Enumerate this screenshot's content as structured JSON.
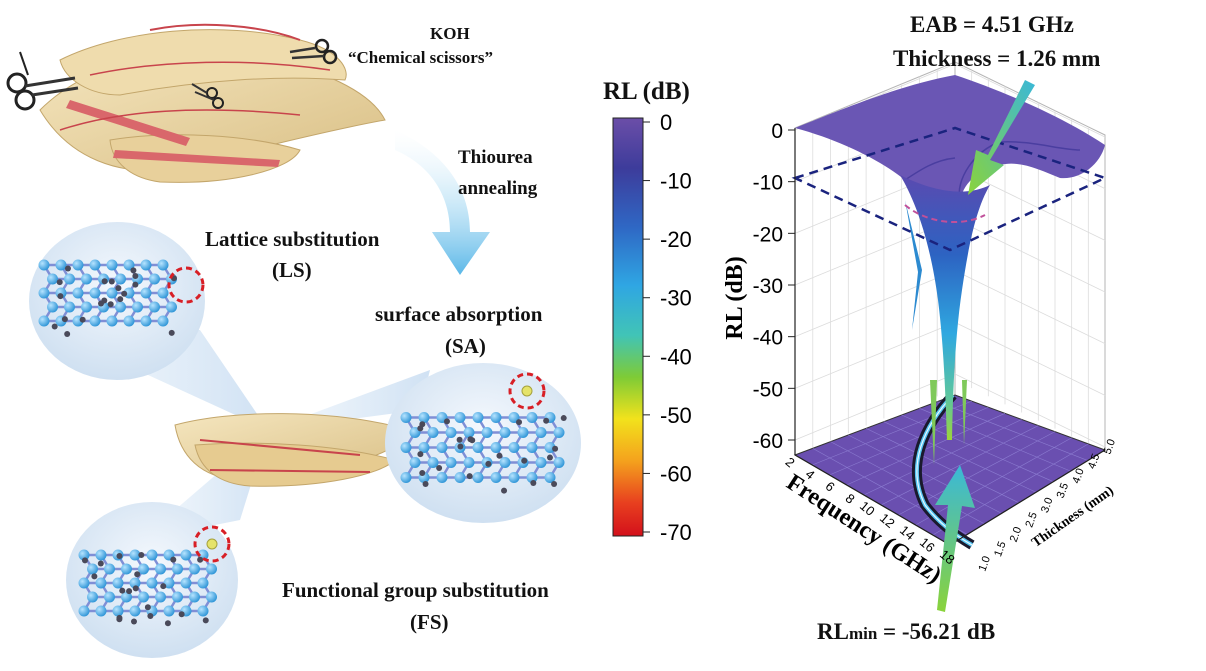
{
  "labels": {
    "koh": "KOH",
    "chem_scissors": "“Chemical scissors”",
    "thiourea": "Thiourea",
    "annealing": "annealing",
    "ls_title": "Lattice substitution",
    "ls_abbr": "(LS)",
    "sa_title": "surface absorption",
    "sa_abbr": "(SA)",
    "fs_title": "Functional group substitution",
    "fs_abbr": "(FS)"
  },
  "colorbar": {
    "title": "RL (dB)",
    "ticks": [
      "0",
      "-10",
      "-20",
      "-30",
      "-40",
      "-50",
      "-60",
      "-70"
    ],
    "min": -70,
    "max": 0,
    "colors": [
      "#6b4ea8",
      "#3d3c9b",
      "#2f67c4",
      "#2fa6e3",
      "#41c4b6",
      "#7ecb36",
      "#f2e21c",
      "#f4a21d",
      "#e8401f",
      "#d3101b"
    ]
  },
  "annotations": {
    "eab": "EAB = 4.51 GHz",
    "thickness": "Thickness = 1.26 mm",
    "rlmin_main": "RL",
    "rlmin_sub": "min",
    "rlmin_value": " = -56.21 dB"
  },
  "chart_data": {
    "type": "surface",
    "zlabel": "RL (dB)",
    "xlabel": "Frequency (GHz)",
    "ylabel": "Thickness (mm)",
    "z_ticks": [
      "0",
      "-10",
      "-20",
      "-30",
      "-40",
      "-50",
      "-60"
    ],
    "x_ticks": [
      "2",
      "4",
      "6",
      "8",
      "10",
      "12",
      "14",
      "16",
      "18"
    ],
    "y_ticks": [
      "1.0",
      "1.5",
      "2.0",
      "2.5",
      "3.0",
      "3.5",
      "4.0",
      "4.5",
      "5.0"
    ],
    "zlim": [
      -60,
      0
    ],
    "xlim": [
      2,
      18
    ],
    "ylim": [
      1.0,
      5.0
    ],
    "threshold_dB": -10,
    "rl_min_dB": -56.21,
    "eab_GHz": 4.51,
    "thickness_mm": 1.26
  },
  "colors": {
    "surface_top": "#6a56b4",
    "dashed_plane": "#1a237e",
    "arrow_green": "#7ed34a",
    "arrow_cyan": "#39b6d8",
    "circle_red": "#d81f26",
    "atom_blue": "#3aa9e6",
    "atom_dark": "#4a4a5a",
    "sheet": "#ecd7a6"
  }
}
